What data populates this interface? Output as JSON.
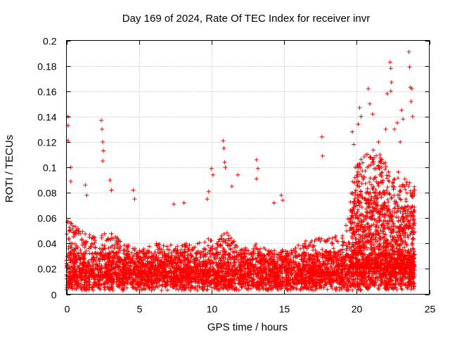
{
  "chart_data": {
    "type": "scatter",
    "title": "Day 169 of 2024, Rate Of TEC Index for receiver invr",
    "xlabel": "GPS time / hours",
    "ylabel": "ROTI / TECUs",
    "xlim": [
      0,
      25
    ],
    "ylim": [
      0,
      0.2
    ],
    "x_ticks": [
      0,
      5,
      10,
      15,
      20,
      25
    ],
    "y_ticks": [
      0,
      0.02,
      0.04,
      0.06,
      0.08,
      0.1,
      0.12,
      0.14,
      0.16,
      0.18,
      0.2
    ],
    "x_tick_labels": [
      "0",
      "5",
      "10",
      "15",
      "20",
      "25"
    ],
    "y_tick_labels": [
      "0",
      "0.02",
      "0.04",
      "0.06",
      "0.08",
      "0.1",
      "0.12",
      "0.14",
      "0.16",
      "0.18",
      "0.2"
    ],
    "grid": true,
    "marker": "+",
    "color": "#ff0000",
    "series": [
      {
        "name": "ROTI",
        "description": "Dense scatter of ROTI samples across 0-24 h; bulk between 0.005 and 0.04 TECU/s, with enhanced activity 19.5-24 h reaching ~0.19.",
        "envelope_hours": [
          0,
          1,
          2,
          3,
          4,
          5,
          6,
          7,
          8,
          9,
          10,
          11,
          12,
          13,
          14,
          15,
          16,
          17,
          18,
          19,
          20,
          21,
          22,
          23,
          24
        ],
        "envelope_typical_max": [
          0.06,
          0.05,
          0.045,
          0.05,
          0.04,
          0.035,
          0.04,
          0.04,
          0.04,
          0.04,
          0.045,
          0.05,
          0.035,
          0.04,
          0.035,
          0.035,
          0.04,
          0.045,
          0.045,
          0.05,
          0.08,
          0.09,
          0.08,
          0.07,
          0.06
        ],
        "outliers": [
          {
            "x": 0.1,
            "y": 0.14
          },
          {
            "x": 0.1,
            "y": 0.133
          },
          {
            "x": 0.1,
            "y": 0.121
          },
          {
            "x": 0.3,
            "y": 0.1
          },
          {
            "x": 0.3,
            "y": 0.089
          },
          {
            "x": 1.3,
            "y": 0.086
          },
          {
            "x": 1.4,
            "y": 0.078
          },
          {
            "x": 2.4,
            "y": 0.137
          },
          {
            "x": 2.45,
            "y": 0.13
          },
          {
            "x": 2.5,
            "y": 0.12
          },
          {
            "x": 2.55,
            "y": 0.113
          },
          {
            "x": 2.5,
            "y": 0.105
          },
          {
            "x": 3.0,
            "y": 0.09
          },
          {
            "x": 3.1,
            "y": 0.082
          },
          {
            "x": 4.6,
            "y": 0.082
          },
          {
            "x": 4.7,
            "y": 0.075
          },
          {
            "x": 7.4,
            "y": 0.071
          },
          {
            "x": 8.1,
            "y": 0.072
          },
          {
            "x": 9.7,
            "y": 0.075
          },
          {
            "x": 9.8,
            "y": 0.081
          },
          {
            "x": 10.0,
            "y": 0.099
          },
          {
            "x": 10.1,
            "y": 0.094
          },
          {
            "x": 10.8,
            "y": 0.121
          },
          {
            "x": 10.85,
            "y": 0.115
          },
          {
            "x": 10.9,
            "y": 0.104
          },
          {
            "x": 10.95,
            "y": 0.1
          },
          {
            "x": 11.4,
            "y": 0.085
          },
          {
            "x": 11.8,
            "y": 0.094
          },
          {
            "x": 13.1,
            "y": 0.106
          },
          {
            "x": 13.2,
            "y": 0.099
          },
          {
            "x": 13.1,
            "y": 0.091
          },
          {
            "x": 14.3,
            "y": 0.072
          },
          {
            "x": 14.8,
            "y": 0.078
          },
          {
            "x": 14.9,
            "y": 0.074
          },
          {
            "x": 17.6,
            "y": 0.124
          },
          {
            "x": 17.65,
            "y": 0.109
          },
          {
            "x": 19.7,
            "y": 0.128
          },
          {
            "x": 19.8,
            "y": 0.118
          },
          {
            "x": 19.9,
            "y": 0.1
          },
          {
            "x": 20.2,
            "y": 0.147
          },
          {
            "x": 20.3,
            "y": 0.14
          },
          {
            "x": 20.1,
            "y": 0.134
          },
          {
            "x": 20.8,
            "y": 0.162
          },
          {
            "x": 20.9,
            "y": 0.15
          },
          {
            "x": 21.1,
            "y": 0.142
          },
          {
            "x": 21.5,
            "y": 0.12
          },
          {
            "x": 21.6,
            "y": 0.11
          },
          {
            "x": 22.0,
            "y": 0.13
          },
          {
            "x": 22.1,
            "y": 0.158
          },
          {
            "x": 22.3,
            "y": 0.183
          },
          {
            "x": 22.35,
            "y": 0.178
          },
          {
            "x": 22.4,
            "y": 0.167
          },
          {
            "x": 22.35,
            "y": 0.16
          },
          {
            "x": 22.6,
            "y": 0.13
          },
          {
            "x": 22.8,
            "y": 0.135
          },
          {
            "x": 23.1,
            "y": 0.145
          },
          {
            "x": 23.2,
            "y": 0.138
          },
          {
            "x": 23.0,
            "y": 0.12
          },
          {
            "x": 23.6,
            "y": 0.191
          },
          {
            "x": 23.65,
            "y": 0.179
          },
          {
            "x": 23.7,
            "y": 0.163
          },
          {
            "x": 23.8,
            "y": 0.162
          },
          {
            "x": 23.75,
            "y": 0.152
          },
          {
            "x": 23.85,
            "y": 0.14
          }
        ]
      }
    ]
  }
}
